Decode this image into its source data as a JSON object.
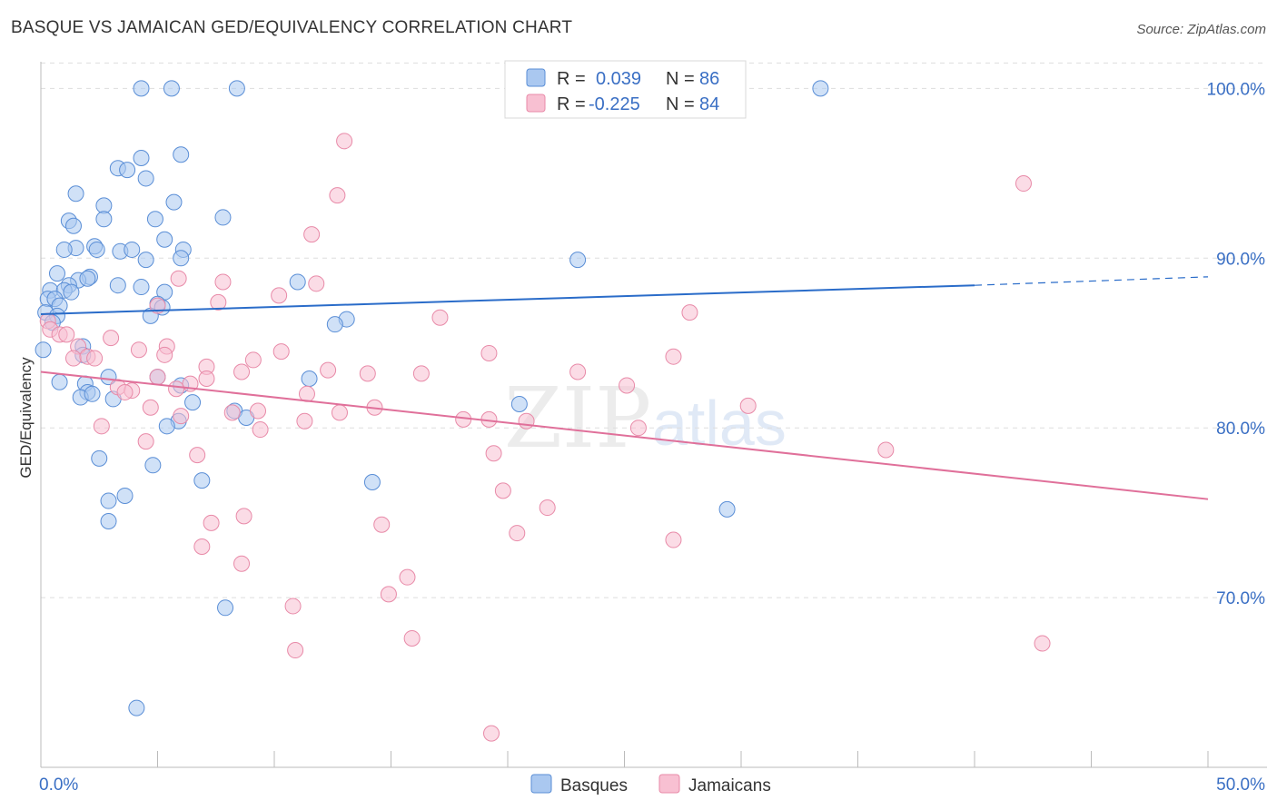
{
  "title": "BASQUE VS JAMAICAN GED/EQUIVALENCY CORRELATION CHART",
  "source": "Source: ZipAtlas.com",
  "watermark": {
    "zip": "ZIP",
    "atlas": "atlas"
  },
  "colors": {
    "blue_fill": "#aac8f0",
    "blue_stroke": "#5a8ed6",
    "blue_line": "#2a6cc9",
    "pink_fill": "#f8c0d2",
    "pink_stroke": "#e88aa8",
    "pink_line": "#e0709a",
    "grid": "#dddddd",
    "axis_text": "#3a6fc4"
  },
  "legend": {
    "rows": [
      {
        "r_label": "R =",
        "r_value": "0.039",
        "n_label": "N =",
        "n_value": "86"
      },
      {
        "r_label": "R =",
        "r_value": "-0.225",
        "n_label": "N =",
        "n_value": "84"
      }
    ]
  },
  "bottom_legend": [
    "Basques",
    "Jamaicans"
  ],
  "chart_data": {
    "type": "scatter",
    "xlabel": "",
    "ylabel": "GED/Equivalency",
    "xlim": [
      0,
      50
    ],
    "ylim": [
      60,
      102
    ],
    "x_tick_labels": [
      "0.0%",
      "50.0%"
    ],
    "y_tick_labels": [
      "100.0%",
      "90.0%",
      "80.0%",
      "70.0%"
    ],
    "y_ticks": [
      100,
      90,
      80,
      70
    ],
    "grid": true,
    "series": [
      {
        "name": "Basques",
        "trend": {
          "x0": 0,
          "y0": 86.7,
          "x1": 40,
          "y1": 88.4,
          "dashed_to_x": 50,
          "dashed_to_y": 88.9
        },
        "points": [
          [
            4.3,
            100
          ],
          [
            5.6,
            100
          ],
          [
            8.4,
            100
          ],
          [
            28.2,
            100
          ],
          [
            33.4,
            100
          ],
          [
            4.3,
            95.9
          ],
          [
            6.0,
            96.1
          ],
          [
            3.3,
            95.3
          ],
          [
            3.7,
            95.2
          ],
          [
            4.5,
            94.7
          ],
          [
            1.5,
            93.8
          ],
          [
            2.7,
            93.1
          ],
          [
            5.7,
            93.3
          ],
          [
            7.8,
            92.4
          ],
          [
            1.2,
            92.2
          ],
          [
            1.4,
            91.9
          ],
          [
            2.7,
            92.3
          ],
          [
            4.9,
            92.3
          ],
          [
            5.3,
            91.1
          ],
          [
            1.5,
            90.6
          ],
          [
            1.0,
            90.5
          ],
          [
            2.3,
            90.7
          ],
          [
            2.4,
            90.5
          ],
          [
            3.4,
            90.4
          ],
          [
            3.9,
            90.5
          ],
          [
            6.1,
            90.5
          ],
          [
            4.5,
            89.9
          ],
          [
            6.0,
            90.0
          ],
          [
            23.0,
            89.9
          ],
          [
            0.7,
            89.1
          ],
          [
            2.1,
            88.9
          ],
          [
            1.6,
            88.7
          ],
          [
            1.2,
            88.4
          ],
          [
            2.0,
            88.8
          ],
          [
            3.3,
            88.4
          ],
          [
            4.3,
            88.3
          ],
          [
            0.4,
            88.1
          ],
          [
            1.0,
            88.1
          ],
          [
            1.3,
            88.0
          ],
          [
            5.3,
            88.0
          ],
          [
            11.0,
            88.6
          ],
          [
            0.3,
            87.6
          ],
          [
            0.6,
            87.6
          ],
          [
            0.8,
            87.2
          ],
          [
            5.0,
            87.3
          ],
          [
            5.2,
            87.1
          ],
          [
            0.2,
            86.8
          ],
          [
            0.7,
            86.6
          ],
          [
            4.7,
            86.6
          ],
          [
            13.1,
            86.4
          ],
          [
            0.5,
            86.2
          ],
          [
            12.6,
            86.1
          ],
          [
            0.1,
            84.6
          ],
          [
            1.8,
            84.8
          ],
          [
            1.8,
            84.3
          ],
          [
            2.9,
            83.0
          ],
          [
            5.0,
            83.0
          ],
          [
            11.5,
            82.9
          ],
          [
            0.8,
            82.7
          ],
          [
            1.9,
            82.6
          ],
          [
            6.0,
            82.5
          ],
          [
            2.0,
            82.1
          ],
          [
            1.7,
            81.8
          ],
          [
            2.2,
            82.0
          ],
          [
            3.1,
            81.7
          ],
          [
            6.5,
            81.5
          ],
          [
            8.3,
            81.0
          ],
          [
            8.8,
            80.6
          ],
          [
            5.9,
            80.4
          ],
          [
            5.4,
            80.1
          ],
          [
            20.5,
            81.4
          ],
          [
            2.5,
            78.2
          ],
          [
            4.8,
            77.8
          ],
          [
            6.9,
            76.9
          ],
          [
            14.2,
            76.8
          ],
          [
            3.6,
            76.0
          ],
          [
            2.9,
            75.7
          ],
          [
            29.4,
            75.2
          ],
          [
            2.9,
            74.5
          ],
          [
            7.9,
            69.4
          ],
          [
            4.1,
            63.5
          ]
        ]
      },
      {
        "name": "Jamaicans",
        "trend": {
          "x0": 0,
          "y0": 83.3,
          "x1": 50,
          "y1": 75.8
        },
        "points": [
          [
            13.0,
            96.9
          ],
          [
            12.7,
            93.7
          ],
          [
            11.6,
            91.4
          ],
          [
            42.1,
            94.4
          ],
          [
            7.8,
            88.6
          ],
          [
            5.9,
            88.8
          ],
          [
            11.8,
            88.5
          ],
          [
            10.2,
            87.8
          ],
          [
            7.6,
            87.4
          ],
          [
            5.0,
            87.2
          ],
          [
            17.1,
            86.5
          ],
          [
            27.8,
            86.8
          ],
          [
            0.3,
            86.3
          ],
          [
            0.4,
            85.8
          ],
          [
            0.8,
            85.5
          ],
          [
            1.1,
            85.5
          ],
          [
            3.0,
            85.3
          ],
          [
            1.6,
            84.8
          ],
          [
            5.4,
            84.8
          ],
          [
            4.2,
            84.6
          ],
          [
            10.3,
            84.5
          ],
          [
            19.2,
            84.4
          ],
          [
            27.1,
            84.2
          ],
          [
            1.4,
            84.1
          ],
          [
            2.0,
            84.2
          ],
          [
            2.3,
            84.1
          ],
          [
            5.3,
            84.3
          ],
          [
            9.1,
            84.0
          ],
          [
            7.1,
            83.6
          ],
          [
            12.3,
            83.4
          ],
          [
            14.0,
            83.2
          ],
          [
            16.3,
            83.2
          ],
          [
            23.0,
            83.3
          ],
          [
            8.6,
            83.3
          ],
          [
            7.1,
            82.9
          ],
          [
            5.0,
            83.0
          ],
          [
            6.4,
            82.6
          ],
          [
            25.1,
            82.5
          ],
          [
            3.3,
            82.4
          ],
          [
            3.9,
            82.2
          ],
          [
            3.6,
            82.1
          ],
          [
            5.8,
            82.3
          ],
          [
            11.4,
            82.0
          ],
          [
            9.3,
            81.0
          ],
          [
            14.3,
            81.2
          ],
          [
            4.7,
            81.2
          ],
          [
            12.8,
            80.9
          ],
          [
            18.1,
            80.5
          ],
          [
            19.2,
            80.5
          ],
          [
            30.3,
            81.3
          ],
          [
            11.3,
            80.4
          ],
          [
            20.8,
            80.4
          ],
          [
            6.0,
            80.7
          ],
          [
            8.2,
            80.9
          ],
          [
            25.6,
            80.0
          ],
          [
            9.4,
            79.9
          ],
          [
            2.6,
            80.1
          ],
          [
            4.5,
            79.2
          ],
          [
            19.4,
            78.5
          ],
          [
            6.7,
            78.4
          ],
          [
            36.2,
            78.7
          ],
          [
            19.8,
            76.3
          ],
          [
            21.7,
            75.3
          ],
          [
            8.7,
            74.8
          ],
          [
            14.6,
            74.3
          ],
          [
            7.3,
            74.4
          ],
          [
            20.4,
            73.8
          ],
          [
            27.1,
            73.4
          ],
          [
            6.9,
            73.0
          ],
          [
            8.6,
            72.0
          ],
          [
            15.7,
            71.2
          ],
          [
            14.9,
            70.2
          ],
          [
            10.8,
            69.5
          ],
          [
            15.9,
            67.6
          ],
          [
            10.9,
            66.9
          ],
          [
            42.9,
            67.3
          ],
          [
            19.3,
            62.0
          ]
        ]
      }
    ]
  }
}
